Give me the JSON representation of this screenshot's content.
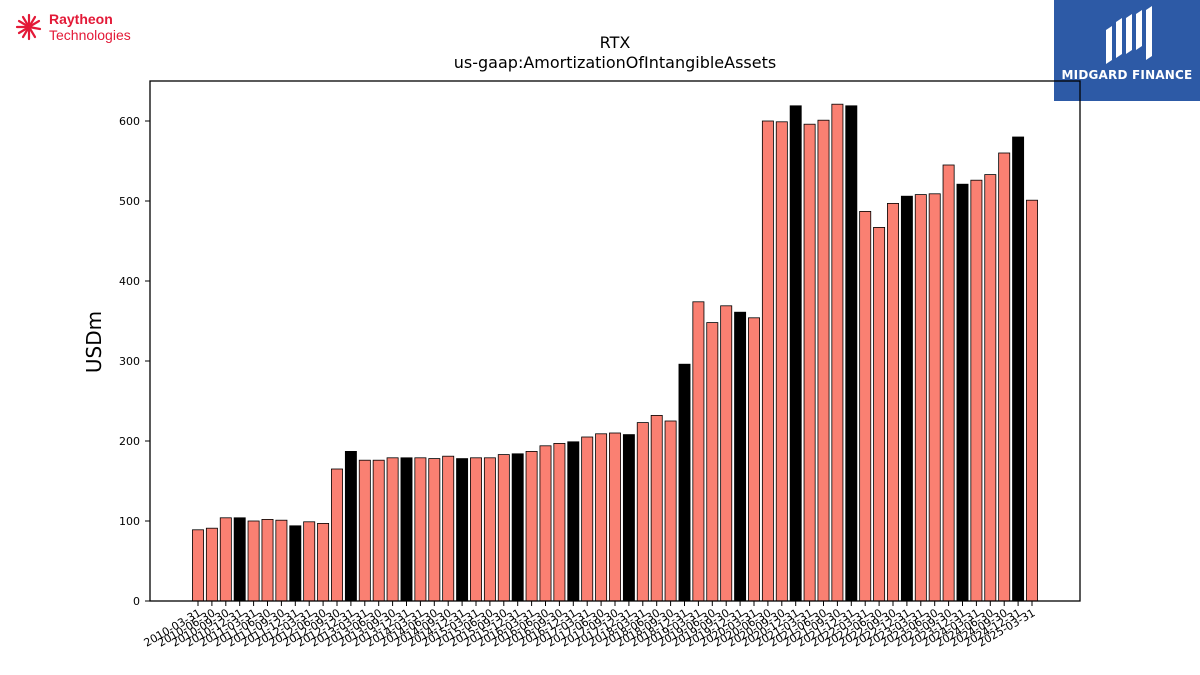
{
  "branding": {
    "left_logo_line1": "Raytheon",
    "left_logo_line2": "Technologies",
    "right_logo_text": "MIDGARD FINANCE"
  },
  "colors": {
    "bar_quarter": "#fa8072",
    "bar_annual": "#000000",
    "left_logo": "#e31937",
    "right_logo_bg": "#2d5aa6"
  },
  "chart_data": {
    "type": "bar",
    "title": "RTX",
    "subtitle": "us-gaap:AmortizationOfIntangibleAssets",
    "xlabel": "",
    "ylabel": "USDm",
    "ylim": [
      0,
      650
    ],
    "yticks": [
      0,
      100,
      200,
      300,
      400,
      500,
      600
    ],
    "grid": false,
    "categories": [
      "2010-03-31",
      "2010-06-30",
      "2010-09-30",
      "2010-12-31",
      "2011-03-31",
      "2011-06-30",
      "2011-09-30",
      "2011-12-31",
      "2012-03-31",
      "2012-06-30",
      "2012-09-30",
      "2012-12-31",
      "2013-03-31",
      "2013-06-30",
      "2013-09-30",
      "2013-12-31",
      "2014-03-31",
      "2014-06-30",
      "2014-09-30",
      "2014-12-31",
      "2015-03-31",
      "2015-06-30",
      "2015-09-30",
      "2015-12-31",
      "2016-03-31",
      "2016-06-30",
      "2016-09-30",
      "2016-12-31",
      "2017-03-31",
      "2017-06-30",
      "2017-09-30",
      "2017-12-31",
      "2018-03-31",
      "2018-06-30",
      "2018-09-30",
      "2018-12-31",
      "2019-03-31",
      "2019-06-30",
      "2019-09-30",
      "2019-12-31",
      "2020-03-31",
      "2020-06-30",
      "2020-09-30",
      "2020-12-31",
      "2021-03-31",
      "2021-06-30",
      "2021-09-30",
      "2021-12-31",
      "2022-03-31",
      "2022-06-30",
      "2022-09-30",
      "2022-12-31",
      "2023-03-31",
      "2023-06-30",
      "2023-09-30",
      "2023-12-31",
      "2024-03-31",
      "2024-06-30",
      "2024-09-30",
      "2024-12-31",
      "2025-03-31"
    ],
    "values": [
      89,
      91,
      104,
      104,
      100,
      102,
      101,
      94,
      99,
      97,
      165,
      187,
      176,
      176,
      179,
      179,
      179,
      178,
      181,
      178,
      179,
      179,
      183,
      184,
      187,
      194,
      197,
      199,
      205,
      209,
      210,
      208,
      223,
      232,
      225,
      296,
      374,
      348,
      369,
      361,
      354,
      600,
      599,
      619,
      596,
      601,
      621,
      619,
      487,
      467,
      497,
      506,
      508,
      509,
      545,
      521,
      526,
      533,
      560,
      580,
      501
    ],
    "annual_flags": [
      0,
      0,
      0,
      1,
      0,
      0,
      0,
      1,
      0,
      0,
      0,
      1,
      0,
      0,
      0,
      1,
      0,
      0,
      0,
      1,
      0,
      0,
      0,
      1,
      0,
      0,
      0,
      1,
      0,
      0,
      0,
      1,
      0,
      0,
      0,
      1,
      0,
      0,
      0,
      1,
      0,
      0,
      0,
      1,
      0,
      0,
      0,
      1,
      0,
      0,
      0,
      1,
      0,
      0,
      0,
      1,
      0,
      0,
      0,
      1,
      0
    ]
  }
}
